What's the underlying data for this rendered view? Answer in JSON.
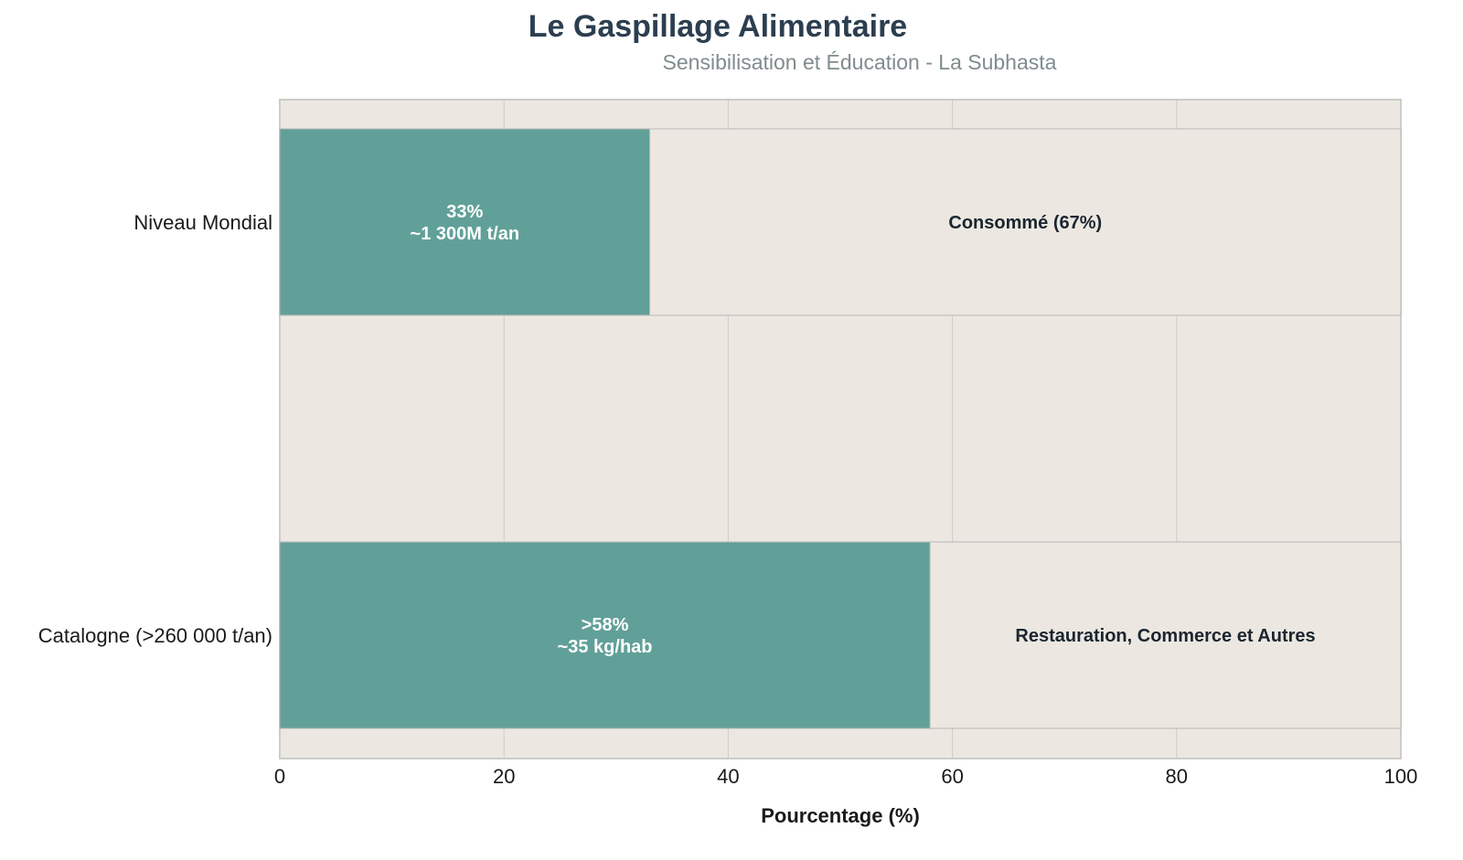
{
  "chart_data": {
    "type": "bar",
    "orientation": "horizontal",
    "stacked": true,
    "title": "Le Gaspillage Alimentaire",
    "subtitle": "Sensibilisation et Éducation - La Subhasta",
    "xlabel": "Pourcentage (%)",
    "ylabel": "",
    "xlim": [
      0,
      100
    ],
    "xticks": [
      "0",
      "20",
      "40",
      "60",
      "80",
      "100"
    ],
    "categories": [
      "Niveau Mondial",
      "Catalogne (>260 000 t/an)"
    ],
    "series": [
      {
        "values": [
          33,
          58
        ],
        "color": "#61a098",
        "labels": [
          [
            "33%",
            "~1 300M t/an"
          ],
          [
            ">58%",
            "~35 kg/hab"
          ]
        ]
      },
      {
        "values": [
          67,
          42
        ],
        "color": "#ece8e1",
        "labels": [
          [
            "Consommé (67%)"
          ],
          [
            "Restauration, Commerce et Autres"
          ]
        ]
      }
    ],
    "grid": true,
    "plot_background": "#ece8e1"
  }
}
